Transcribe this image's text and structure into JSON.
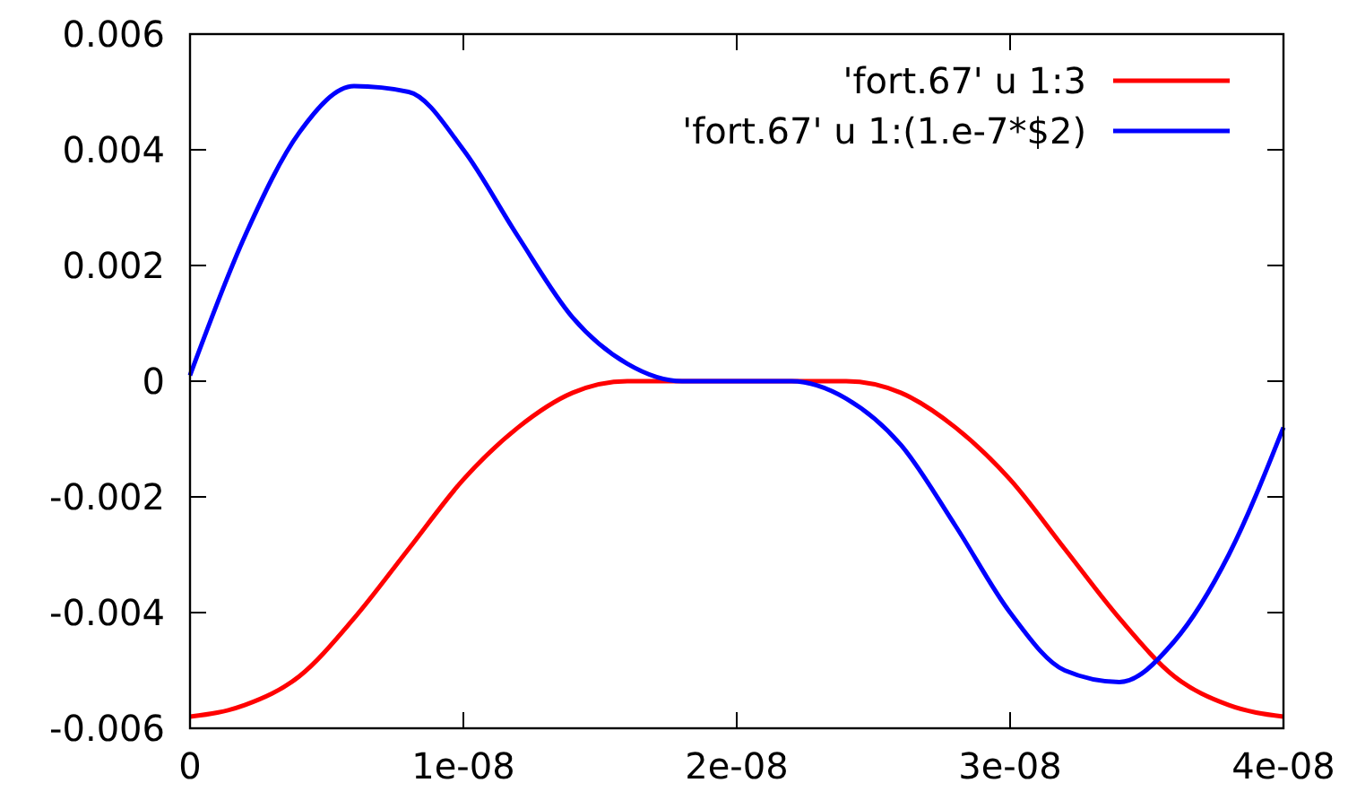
{
  "chart_data": {
    "type": "line",
    "x": [
      0,
      2e-09,
      4e-09,
      6e-09,
      8e-09,
      1e-08,
      1.2e-08,
      1.4e-08,
      1.6e-08,
      1.8e-08,
      2e-08,
      2.2e-08,
      2.4e-08,
      2.6e-08,
      2.8e-08,
      3e-08,
      3.2e-08,
      3.4e-08,
      3.6e-08,
      3.8e-08,
      4e-08
    ],
    "series": [
      {
        "name": "'fort.67' u 1:3",
        "color": "#ff0000",
        "values": [
          -0.0058,
          -0.0056,
          -0.0051,
          -0.0041,
          -0.0029,
          -0.0017,
          -0.0008,
          -0.0002,
          0,
          0,
          0,
          0,
          0,
          -0.0002,
          -0.0008,
          -0.0017,
          -0.0029,
          -0.0041,
          -0.0051,
          -0.0056,
          -0.0058
        ]
      },
      {
        "name": "'fort.67' u 1:(1.e-7*$2)",
        "color": "#0000ff",
        "values": [
          0.0001,
          0.0025,
          0.0043,
          0.0051,
          0.005,
          0.004,
          0.0025,
          0.0011,
          0.0003,
          0,
          0,
          0,
          -0.0003,
          -0.0011,
          -0.0025,
          -0.004,
          -0.005,
          -0.0052,
          -0.0045,
          -0.003,
          -0.0008
        ]
      }
    ],
    "xlim": [
      0,
      4e-08
    ],
    "xticks": [
      0,
      {
        "value": 1e-08,
        "label": "1e-08"
      },
      {
        "value": 2e-08,
        "label": "2e-08"
      },
      {
        "value": 3e-08,
        "label": "3e-08"
      },
      {
        "value": 4e-08,
        "label": "4e-08"
      }
    ],
    "ylim": [
      -0.006,
      0.006
    ],
    "yticks": [
      -0.006,
      -0.004,
      -0.002,
      0,
      0.002,
      0.004,
      0.006
    ],
    "grid": false,
    "legend": "top right",
    "marker": "none",
    "line_style": "solid"
  }
}
